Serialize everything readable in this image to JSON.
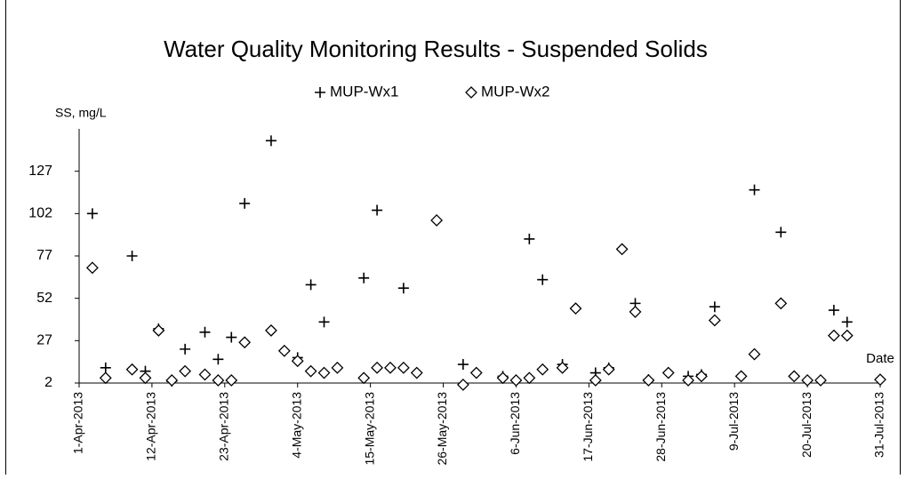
{
  "chart_data": {
    "type": "scatter",
    "title": "Water Quality Monitoring Results - Suspended Solids",
    "y_label": "SS, mg/L",
    "x_label": "Date",
    "ylim": [
      2,
      152
    ],
    "yticks": [
      2,
      27,
      52,
      77,
      102,
      127
    ],
    "xlim": [
      "2013-04-01",
      "2013-07-31"
    ],
    "xticks": [
      {
        "value": "2013-04-01",
        "label": "1-Apr-2013"
      },
      {
        "value": "2013-04-12",
        "label": "12-Apr-2013"
      },
      {
        "value": "2013-04-23",
        "label": "23-Apr-2013"
      },
      {
        "value": "2013-05-04",
        "label": "4-May-2013"
      },
      {
        "value": "2013-05-15",
        "label": "15-May-2013"
      },
      {
        "value": "2013-05-26",
        "label": "26-May-2013"
      },
      {
        "value": "2013-06-06",
        "label": "6-Jun-2013"
      },
      {
        "value": "2013-06-17",
        "label": "17-Jun-2013"
      },
      {
        "value": "2013-06-28",
        "label": "28-Jun-2013"
      },
      {
        "value": "2013-07-09",
        "label": "9-Jul-2013"
      },
      {
        "value": "2013-07-20",
        "label": "20-Jul-2013"
      },
      {
        "value": "2013-07-31",
        "label": "31-Jul-2013"
      }
    ],
    "grid": false,
    "series": [
      {
        "name": "MUP-Wx1",
        "marker": "plus",
        "color": "#000000",
        "x": [
          "2013-04-03",
          "2013-04-05",
          "2013-04-09",
          "2013-04-11",
          "2013-04-13",
          "2013-04-15",
          "2013-04-17",
          "2013-04-20",
          "2013-04-22",
          "2013-04-24",
          "2013-04-26",
          "2013-04-30",
          "2013-05-02",
          "2013-05-04",
          "2013-05-06",
          "2013-05-08",
          "2013-05-14",
          "2013-05-16",
          "2013-05-18",
          "2013-05-20",
          "2013-05-22",
          "2013-05-29",
          "2013-05-31",
          "2013-06-04",
          "2013-06-08",
          "2013-06-10",
          "2013-06-13",
          "2013-06-18",
          "2013-06-20",
          "2013-06-24",
          "2013-06-26",
          "2013-06-29",
          "2013-07-02",
          "2013-07-04",
          "2013-07-06",
          "2013-07-10",
          "2013-07-12",
          "2013-07-16",
          "2013-07-18",
          "2013-07-24",
          "2013-07-26",
          "2013-07-31"
        ],
        "values": [
          102,
          11,
          77,
          9,
          34,
          3,
          22,
          32,
          16,
          29,
          108,
          145,
          21,
          17,
          60,
          38,
          64,
          104,
          11,
          58,
          8,
          13,
          8,
          6,
          87,
          63,
          13,
          8,
          11,
          49,
          4,
          8,
          6,
          7,
          47,
          6,
          116,
          91,
          6,
          45,
          38,
          4
        ]
      },
      {
        "name": "MUP-Wx2",
        "marker": "diamond",
        "color": "#000000",
        "x": [
          "2013-04-03",
          "2013-04-05",
          "2013-04-09",
          "2013-04-11",
          "2013-04-13",
          "2013-04-15",
          "2013-04-17",
          "2013-04-20",
          "2013-04-22",
          "2013-04-24",
          "2013-04-26",
          "2013-04-30",
          "2013-05-02",
          "2013-05-04",
          "2013-05-06",
          "2013-05-08",
          "2013-05-10",
          "2013-05-14",
          "2013-05-16",
          "2013-05-18",
          "2013-05-20",
          "2013-05-22",
          "2013-05-25",
          "2013-05-29",
          "2013-05-31",
          "2013-06-04",
          "2013-06-06",
          "2013-06-08",
          "2013-06-10",
          "2013-06-13",
          "2013-06-15",
          "2013-06-18",
          "2013-06-20",
          "2013-06-22",
          "2013-06-24",
          "2013-06-26",
          "2013-06-29",
          "2013-07-02",
          "2013-07-04",
          "2013-07-06",
          "2013-07-10",
          "2013-07-12",
          "2013-07-16",
          "2013-07-18",
          "2013-07-20",
          "2013-07-22",
          "2013-07-24",
          "2013-07-26",
          "2013-07-31"
        ],
        "values": [
          70,
          5,
          10,
          5,
          33,
          3.6,
          9,
          7,
          3.6,
          3.6,
          26,
          33,
          21,
          15,
          9,
          8,
          11,
          5,
          11,
          11,
          11,
          8,
          98,
          1,
          8,
          5,
          3.6,
          5,
          10,
          11,
          46,
          3.6,
          10,
          81,
          44,
          3.6,
          8,
          3.6,
          6,
          39,
          6,
          19,
          49,
          6,
          3.6,
          3.6,
          30,
          30,
          4
        ]
      }
    ]
  }
}
